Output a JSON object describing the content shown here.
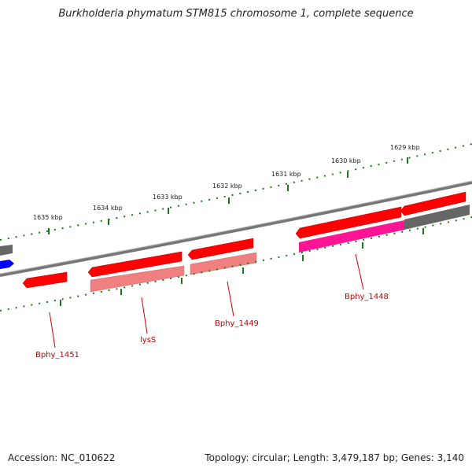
{
  "title": "Burkholderia phymatum STM815 chromosome 1, complete sequence",
  "footer": {
    "accession": "Accession: NC_010622",
    "summary": "Topology: circular; Length: 3,479,187 bp; Genes: 3,140"
  },
  "colors": {
    "cds_forward": "#ff0000",
    "cds_reverse_pair": "#f08080",
    "rna": "#ff1493",
    "other_gene": "#666666",
    "blue_feature": "#0000ff",
    "backbone": "#888888",
    "ticks": "#1a7a1a",
    "label": "#cc0000"
  },
  "scale_labels": [
    "1635 kbp",
    "1634 kbp",
    "1633 kbp",
    "1632 kbp",
    "1631 kbp",
    "1630 kbp",
    "1629 kbp"
  ],
  "gene_labels": [
    "Bphy_1451",
    "lysS",
    "Bphy_1449",
    "Bphy_1448"
  ]
}
